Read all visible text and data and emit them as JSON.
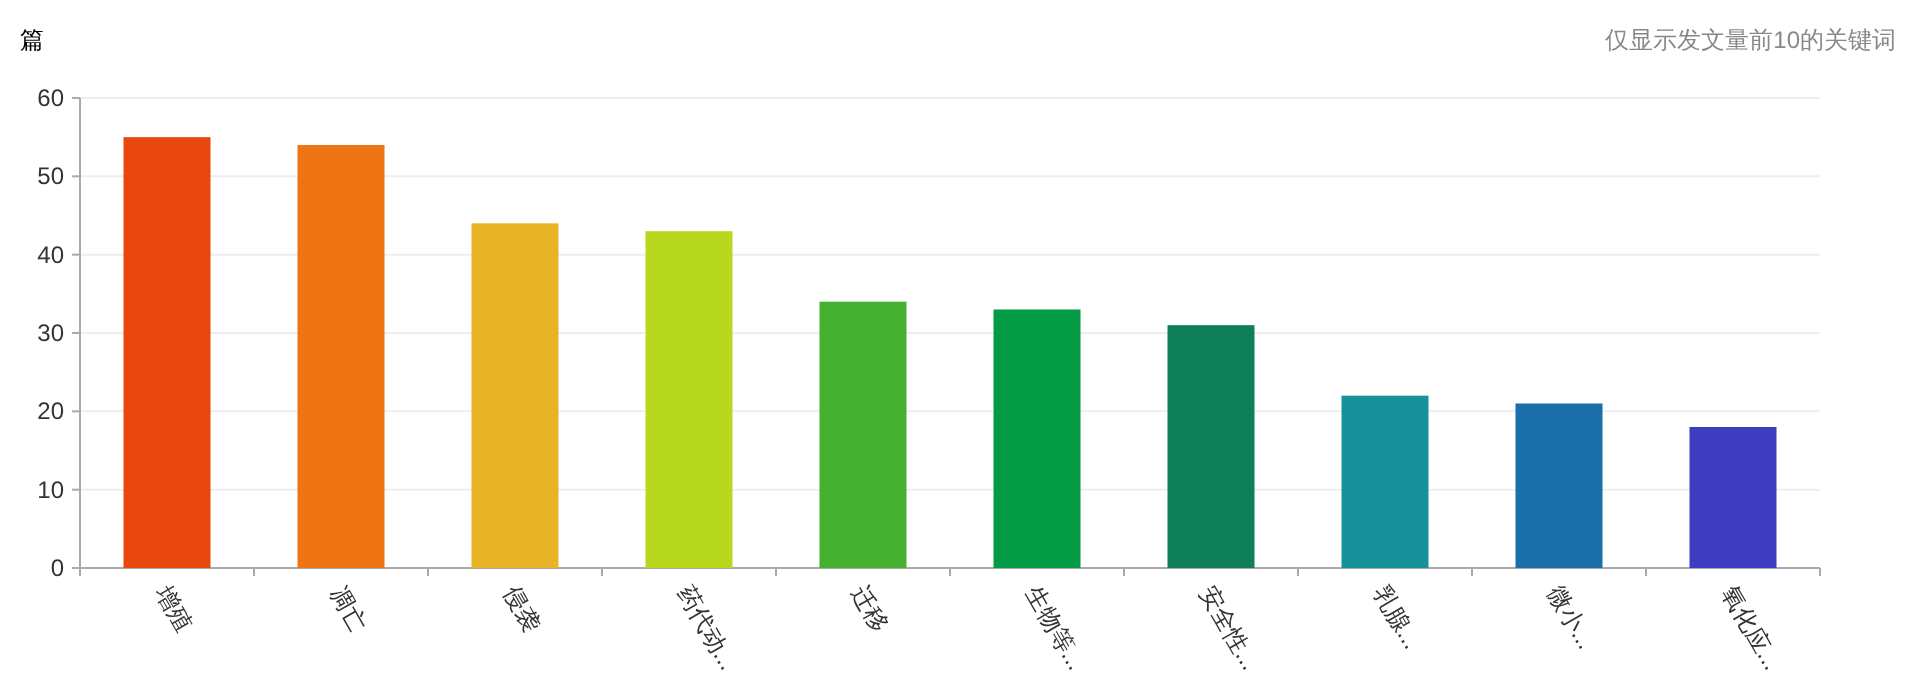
{
  "chart_data": {
    "type": "bar",
    "ylabel": "篇",
    "annotations": [
      "仅显示发文量前10的关键词"
    ],
    "categories": [
      "增殖",
      "凋亡",
      "侵袭",
      "药代动...",
      "迁移",
      "生物等...",
      "安全性...",
      "乳腺...",
      "微小...",
      "氧化应..."
    ],
    "values": [
      55,
      54,
      44,
      43,
      34,
      33,
      31,
      22,
      21,
      18
    ],
    "colors": [
      "#e8470e",
      "#ef7414",
      "#e9b327",
      "#b8d81e",
      "#43b02f",
      "#039a45",
      "#0e7f58",
      "#17929a",
      "#1a6eaa",
      "#3e3dc2"
    ],
    "ylim": [
      0,
      60
    ],
    "yticks": [
      0,
      10,
      20,
      30,
      40,
      50,
      60
    ],
    "grid": "y"
  }
}
